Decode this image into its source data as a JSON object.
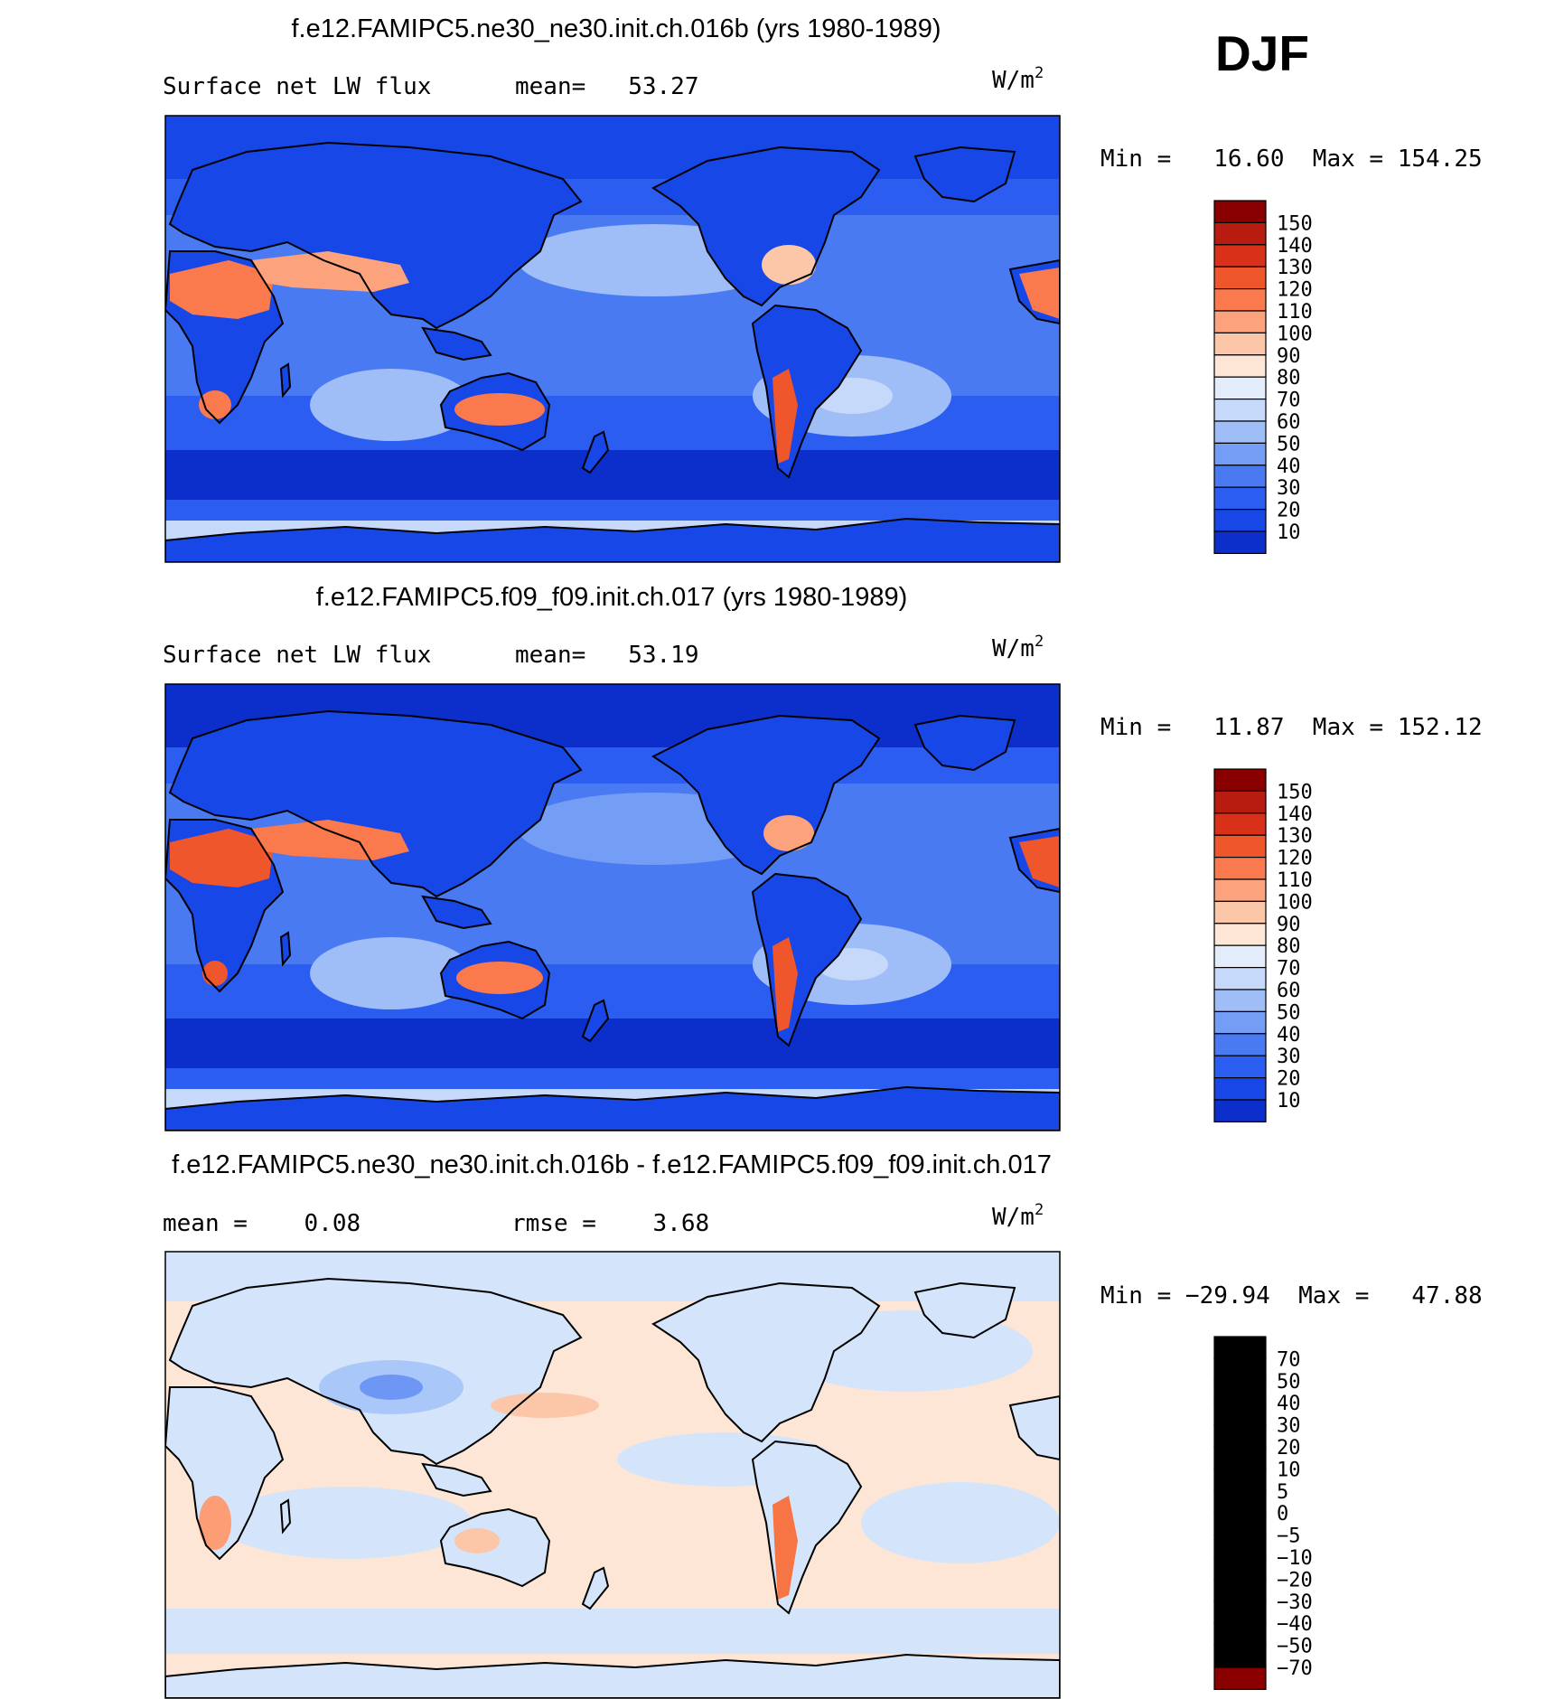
{
  "season": "DJF",
  "unit_base": "W/m",
  "unit_exp": "2",
  "chart_data": [
    {
      "type": "heatmap",
      "title": "f.e12.FAMIPC5.ne30_ne30.init.ch.016b (yrs 1980-1989)",
      "left_label": "Surface net LW flux",
      "mid_label": "mean=   53.27",
      "stats": "Min =   16.60  Max = 154.25",
      "min": 16.6,
      "max": 154.25,
      "mean": 53.27,
      "levels": [
        "150",
        "140",
        "130",
        "120",
        "110",
        "100",
        "90",
        "80",
        "70",
        "60",
        "50",
        "40",
        "30",
        "20",
        "10"
      ]
    },
    {
      "type": "heatmap",
      "title": "f.e12.FAMIPC5.f09_f09.init.ch.017 (yrs 1980-1989)",
      "left_label": "Surface net LW flux",
      "mid_label": "mean=   53.19",
      "stats": "Min =   11.87  Max = 152.12",
      "min": 11.87,
      "max": 152.12,
      "mean": 53.19,
      "levels": [
        "150",
        "140",
        "130",
        "120",
        "110",
        "100",
        "90",
        "80",
        "70",
        "60",
        "50",
        "40",
        "30",
        "20",
        "10"
      ]
    },
    {
      "type": "heatmap",
      "title": "f.e12.FAMIPC5.ne30_ne30.init.ch.016b - f.e12.FAMIPC5.f09_f09.init.ch.017",
      "left_label": "mean =    0.08",
      "mid_label": "rmse =    3.68",
      "stats": "Min = −29.94  Max =   47.88",
      "min": -29.94,
      "max": 47.88,
      "mean": 0.08,
      "rmse": 3.68,
      "levels": [
        "70",
        "50",
        "40",
        "30",
        "20",
        "10",
        "5",
        "0",
        "−5",
        "−10",
        "−20",
        "−30",
        "−40",
        "−50",
        "−70"
      ]
    }
  ],
  "palettes": {
    "abs": [
      "#000080",
      "#0b18a8",
      "#0c2fcc",
      "#1747e6",
      "#2b5ef0",
      "#4a7af2",
      "#749ef5",
      "#9fbef7",
      "#c6d9fa",
      "#e2ecfb",
      "#fde6d6",
      "#fcc7a8",
      "#fca27c",
      "#fa7a4e",
      "#f0562b",
      "#d9301a",
      "#b81c10",
      "#8a0000"
    ],
    "diff": [
      "#000080",
      "#0b18a8",
      "#0c2fcc",
      "#1747e6",
      "#3a6cf0",
      "#6e96f4",
      "#a9c7f8",
      "#d4e5fb",
      "#fde6d6",
      "#fcc7a8",
      "#fc9d76",
      "#f77545",
      "#e94d25",
      "#c82a14",
      "#8a0000"
    ]
  }
}
